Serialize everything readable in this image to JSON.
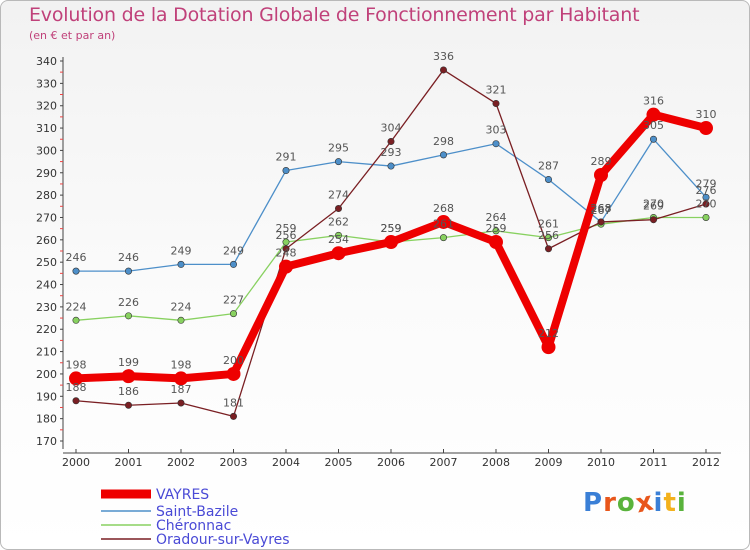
{
  "header": {
    "title": "Evolution de la Dotation Globale de Fonctionnement par Habitant",
    "subtitle": "(en € et par an)"
  },
  "logo": {
    "text": "Proxiti",
    "letters": [
      "P",
      "r",
      "o",
      "x",
      "i",
      "t",
      "i"
    ],
    "colors": [
      "#3a7fd6",
      "#e8561b",
      "#59b33c",
      "#e8561b",
      "#3a7fd6",
      "#f3b11c",
      "#59b33c"
    ]
  },
  "chart_data": {
    "type": "line",
    "title": "Evolution de la Dotation Globale de Fonctionnement par Habitant",
    "subtitle": "(en € et par an)",
    "xlabel": "",
    "ylabel": "",
    "ylim": [
      170,
      340
    ],
    "ytick_step": 10,
    "grid": false,
    "legend_position": "bottom-left",
    "categories": [
      "2000",
      "2001",
      "2002",
      "2003",
      "2004",
      "2005",
      "2006",
      "2007",
      "2008",
      "2009",
      "2010",
      "2011",
      "2012"
    ],
    "series": [
      {
        "name": "VAYRES",
        "color": "#ee0000",
        "values": [
          198,
          199,
          198,
          200,
          248,
          254,
          259,
          268,
          259,
          212,
          289,
          316,
          310
        ],
        "labels": [
          "198",
          "199",
          "198",
          "200",
          "248",
          "254",
          "259",
          "268",
          "259",
          "212",
          "289",
          "316",
          "310"
        ]
      },
      {
        "name": "Saint-Bazile",
        "color": "#4d8fc9",
        "values": [
          246,
          246,
          249,
          249,
          291,
          295,
          293,
          298,
          303,
          287,
          268,
          305,
          279
        ],
        "labels": [
          "246",
          "246",
          "249",
          "249",
          "291",
          "295",
          "293",
          "298",
          "303",
          "287",
          "268",
          "305",
          "279"
        ]
      },
      {
        "name": "Chéronnac",
        "color": "#88d160",
        "values": [
          224,
          226,
          224,
          227,
          259,
          262,
          259,
          261,
          264,
          261,
          267,
          270,
          270
        ],
        "labels": [
          "224",
          "226",
          "224",
          "227",
          "259",
          "262",
          "259",
          "261",
          "264",
          "261",
          "267",
          "270",
          "270"
        ]
      },
      {
        "name": "Oradour-sur-Vayres",
        "color": "#7a1f23",
        "values": [
          188,
          186,
          187,
          181,
          256,
          274,
          304,
          336,
          321,
          256,
          268,
          269,
          276
        ],
        "labels": [
          "188",
          "186",
          "187",
          "181",
          "256",
          "274",
          "304",
          "336",
          "321",
          "256",
          "268",
          "269",
          "276"
        ]
      }
    ]
  }
}
